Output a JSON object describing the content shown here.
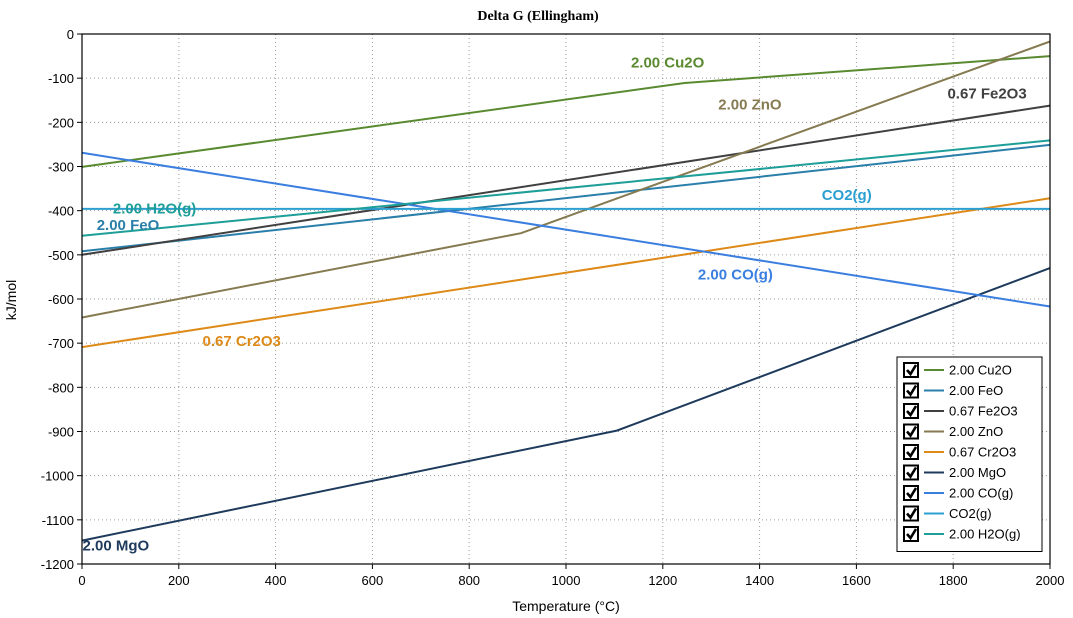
{
  "chart_data": {
    "type": "line",
    "title": "Delta G (Ellingham)",
    "xlabel": "Temperature (°C)",
    "ylabel": "kJ/mol",
    "xlim": [
      0,
      2000
    ],
    "ylim": [
      -1200,
      0
    ],
    "x_ticks": [
      0,
      200,
      400,
      600,
      800,
      1000,
      1200,
      1400,
      1600,
      1800,
      2000
    ],
    "y_ticks": [
      0,
      -100,
      -200,
      -300,
      -400,
      -500,
      -600,
      -700,
      -800,
      -900,
      -1000,
      -1100,
      -1200
    ],
    "grid": true,
    "legend_placement": "bottom-right",
    "series": [
      {
        "name": "2.00 Cu2O",
        "color": "#5a8a30",
        "points": [
          [
            0,
            -301
          ],
          [
            1245,
            -111
          ],
          [
            2000,
            -50
          ]
        ]
      },
      {
        "name": "2.00 FeO",
        "color": "#2a7faa",
        "points": [
          [
            0,
            -492
          ],
          [
            2000,
            -251
          ]
        ]
      },
      {
        "name": "0.67 Fe2O3",
        "color": "#404040",
        "points": [
          [
            0,
            -500
          ],
          [
            2000,
            -162
          ]
        ]
      },
      {
        "name": "2.00 ZnO",
        "color": "#857a50",
        "points": [
          [
            0,
            -642
          ],
          [
            907,
            -451
          ],
          [
            2000,
            -17
          ]
        ]
      },
      {
        "name": "0.67 Cr2O3",
        "color": "#dd8a18",
        "points": [
          [
            0,
            -709
          ],
          [
            2000,
            -372
          ]
        ]
      },
      {
        "name": "2.00 MgO",
        "color": "#1e3a5c",
        "points": [
          [
            0,
            -1147
          ],
          [
            1105,
            -898
          ],
          [
            2000,
            -530
          ]
        ]
      },
      {
        "name": "2.00 CO(g)",
        "color": "#3a7ee0",
        "points": [
          [
            0,
            -269
          ],
          [
            2000,
            -617
          ]
        ]
      },
      {
        "name": "CO2(g)",
        "color": "#2b9fd1",
        "points": [
          [
            0,
            -396
          ],
          [
            2000,
            -396
          ]
        ]
      },
      {
        "name": "2.00 H2O(g)",
        "color": "#1d9e98",
        "points": [
          [
            0,
            -457
          ],
          [
            2000,
            -241
          ]
        ]
      }
    ],
    "annotations": [
      {
        "series": "2.00 Cu2O",
        "text": "2.00 Cu2O",
        "x": 1210,
        "y": -65
      },
      {
        "series": "2.00 ZnO",
        "text": "2.00 ZnO",
        "x": 1380,
        "y": -160
      },
      {
        "series": "0.67 Fe2O3",
        "text": "0.67 Fe2O3",
        "x": 1870,
        "y": -135
      },
      {
        "series": "CO2(g)",
        "text": "CO2(g)",
        "x": 1580,
        "y": -365
      },
      {
        "series": "2.00 H2O(g)",
        "text": "2.00 H2O(g)",
        "x": 150,
        "y": -395
      },
      {
        "series": "2.00 FeO",
        "text": "2.00 FeO",
        "x": 95,
        "y": -432
      },
      {
        "series": "2.00 CO(g)",
        "text": "2.00 CO(g)",
        "x": 1350,
        "y": -545
      },
      {
        "series": "0.67 Cr2O3",
        "text": "0.67 Cr2O3",
        "x": 330,
        "y": -695
      },
      {
        "series": "2.00 MgO",
        "text": "2.00 MgO",
        "x": 70,
        "y": -1158
      }
    ],
    "legend_checked": true
  }
}
